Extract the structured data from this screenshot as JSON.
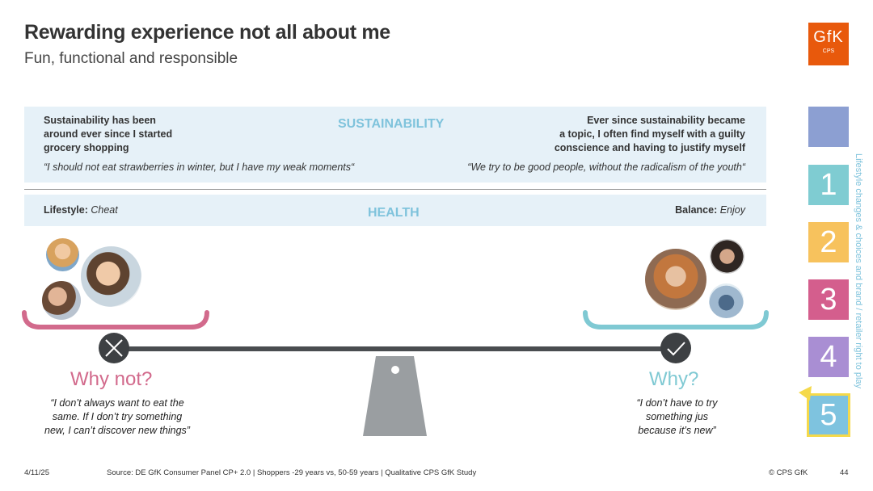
{
  "header": {
    "title": "Rewarding experience not all about me",
    "subtitle": "Fun, functional and responsible"
  },
  "logo": {
    "brand": "GfK",
    "sub": "CPS",
    "color": "#e8590c"
  },
  "sustainability": {
    "heading": "SUSTAINABILITY",
    "left_statement": [
      "Sustainability has been",
      "around ever since I started",
      "grocery shopping"
    ],
    "left_quote": "“I should not eat strawberries in winter, but I have my weak moments“",
    "right_statement": [
      "Ever since sustainability became",
      "a topic, I often find myself with a guilty",
      "conscience and having to justify myself"
    ],
    "right_quote": "“We try to be good people, without the radicalism of the youth“"
  },
  "health": {
    "heading": "HEALTH",
    "left_label": "Lifestyle:",
    "left_value": "Cheat",
    "right_label": "Balance:",
    "right_value": "Enjoy"
  },
  "balance": {
    "left_icon": "x-icon",
    "right_icon": "check-icon",
    "left_heading": "Why not?",
    "left_quote": [
      "“I don’t always want to eat the",
      "same. If I don’t try something",
      "new, I can’t discover new things”"
    ],
    "right_heading": "Why?",
    "right_quote": [
      "“I don’t have to try",
      "something jus",
      "because it’s new”"
    ],
    "colors": {
      "left": "#d26a8c",
      "right": "#7fc9d3",
      "beam": "#4a4d50",
      "fulcrum": "#9a9ea1"
    }
  },
  "sidebar": {
    "items": [
      {
        "label": "",
        "color": "#8c9fd2"
      },
      {
        "label": "1",
        "color": "#7fccd2"
      },
      {
        "label": "2",
        "color": "#f7c25d"
      },
      {
        "label": "3",
        "color": "#d45e8d"
      },
      {
        "label": "4",
        "color": "#a98ed3"
      },
      {
        "label": "5",
        "color": "#7ec3df"
      }
    ],
    "active_border": "#f5d94a",
    "vertical_text": "Lifestyle changes & choices and brand / retailer right to play"
  },
  "footer": {
    "date": "4/11/25",
    "source": "Source: DE GfK Consumer Panel CP+ 2.0 | Shoppers -29 years vs, 50-59 years | Qualitative CPS GfK Study",
    "copyright": "© CPS GfK",
    "page": "44"
  }
}
